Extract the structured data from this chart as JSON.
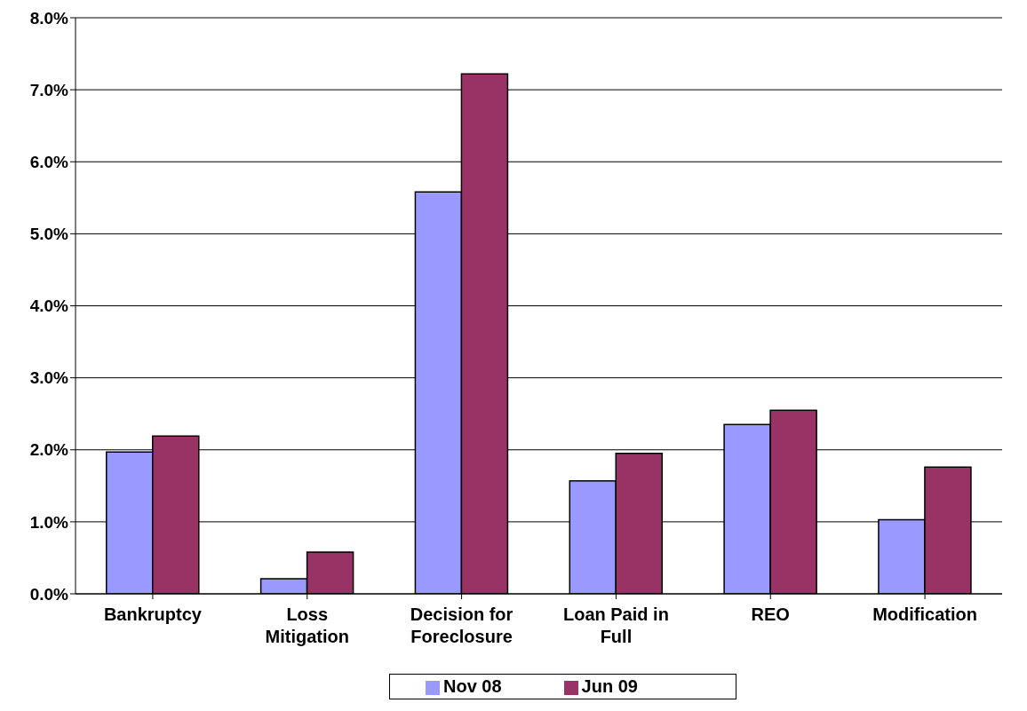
{
  "chart_data": {
    "type": "bar",
    "categories": [
      "Bankruptcy",
      "Loss Mitigation",
      "Decision for Foreclosure",
      "Loan Paid in Full",
      "REO",
      "Modification"
    ],
    "series": [
      {
        "name": "Nov 08",
        "color": "#9999ff",
        "values": [
          1.97,
          0.21,
          5.58,
          1.57,
          2.35,
          1.03
        ]
      },
      {
        "name": "Jun 09",
        "color": "#993366",
        "values": [
          2.19,
          0.58,
          7.22,
          1.95,
          2.55,
          1.76
        ]
      }
    ],
    "ylim": [
      0,
      8
    ],
    "yticks": [
      {
        "value": 0,
        "label": "0.0%"
      },
      {
        "value": 1,
        "label": "1.0%"
      },
      {
        "value": 2,
        "label": "2.0%"
      },
      {
        "value": 3,
        "label": "3.0%"
      },
      {
        "value": 4,
        "label": "4.0%"
      },
      {
        "value": 5,
        "label": "5.0%"
      },
      {
        "value": 6,
        "label": "6.0%"
      },
      {
        "value": 7,
        "label": "7.0%"
      },
      {
        "value": 8,
        "label": "8.0%"
      }
    ],
    "grid": "y",
    "legend": "bottom"
  }
}
